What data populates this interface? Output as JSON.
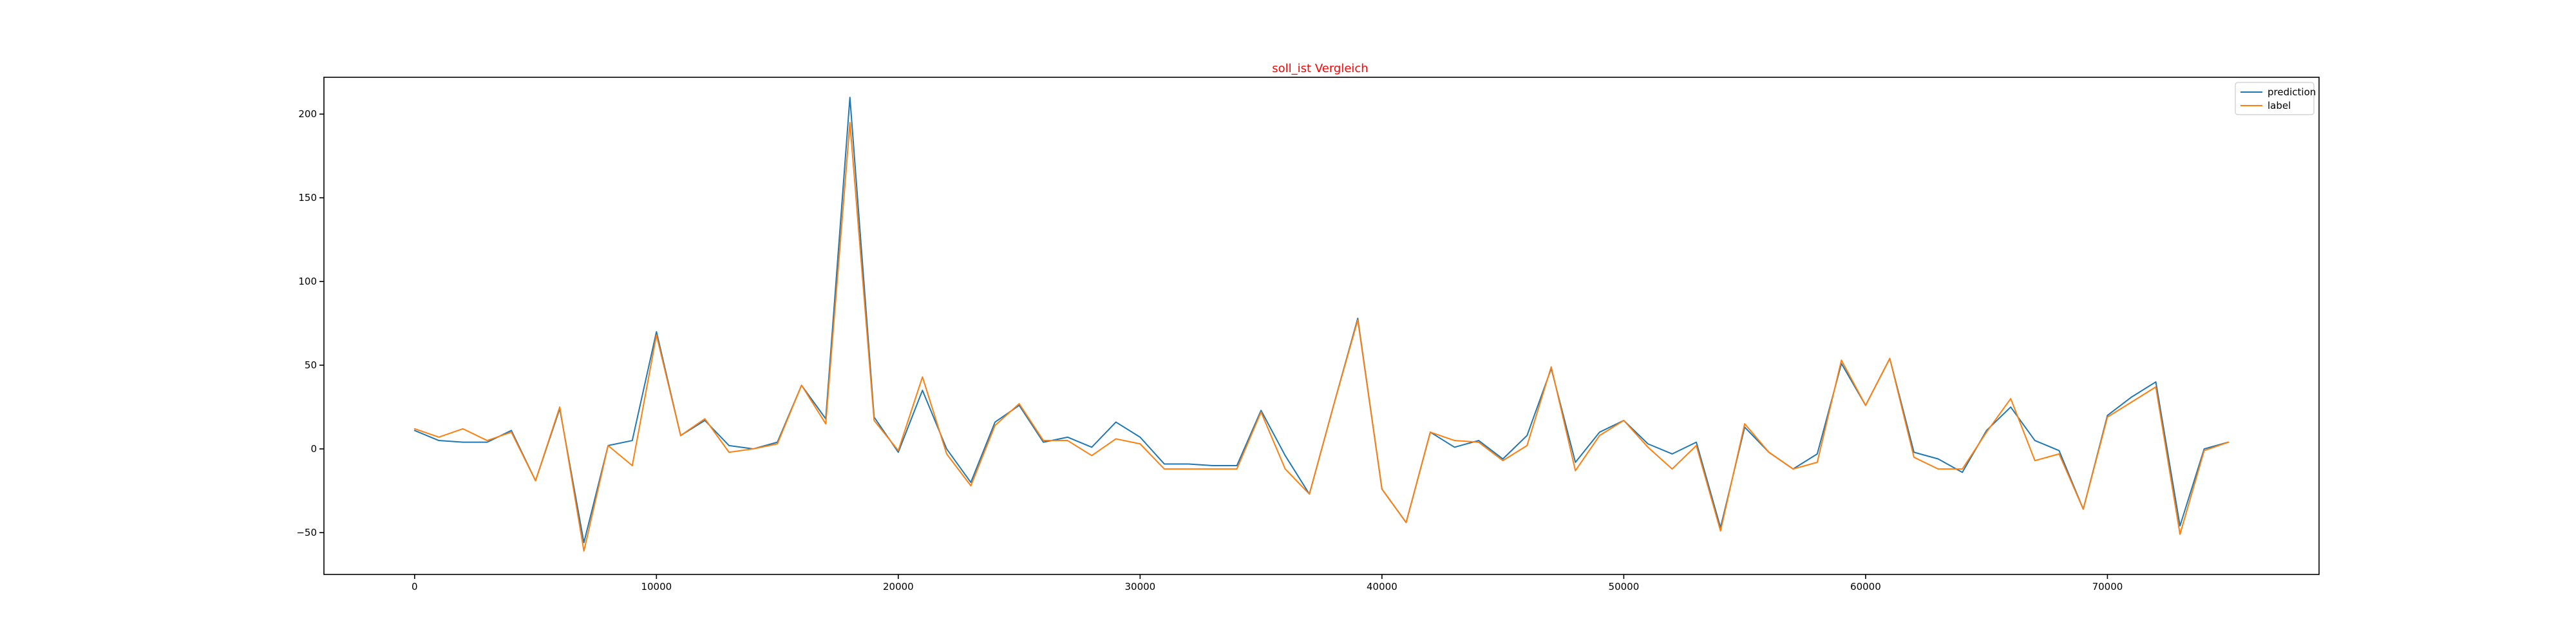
{
  "chart_data": {
    "type": "line",
    "title": "soll_ist Vergleich",
    "title_color": "#ff0000",
    "xlabel": "",
    "ylabel": "",
    "xlim": [
      -3750,
      78750
    ],
    "ylim": [
      -75,
      222
    ],
    "x_ticks": [
      0,
      10000,
      20000,
      30000,
      40000,
      50000,
      60000,
      70000
    ],
    "y_ticks": [
      -50,
      0,
      50,
      100,
      150,
      200
    ],
    "grid": false,
    "legend_position": "top-right",
    "x": [
      0,
      1000,
      2000,
      3000,
      4000,
      5000,
      6000,
      7000,
      8000,
      9000,
      10000,
      11000,
      12000,
      13000,
      14000,
      15000,
      16000,
      17000,
      18000,
      19000,
      20000,
      21000,
      22000,
      23000,
      24000,
      25000,
      26000,
      27000,
      28000,
      29000,
      30000,
      31000,
      32000,
      33000,
      34000,
      35000,
      36000,
      37000,
      38000,
      39000,
      40000,
      41000,
      42000,
      43000,
      44000,
      45000,
      46000,
      47000,
      48000,
      49000,
      50000,
      51000,
      52000,
      53000,
      54000,
      55000,
      56000,
      57000,
      58000,
      59000,
      60000,
      61000,
      62000,
      63000,
      64000,
      65000,
      66000,
      67000,
      68000,
      69000,
      70000,
      71000,
      72000,
      73000,
      74000,
      75000
    ],
    "series": [
      {
        "name": "prediction",
        "color": "#1f77b4",
        "values": [
          11,
          5,
          4,
          4,
          11,
          -19,
          24,
          -56,
          2,
          5,
          70,
          8,
          17,
          2,
          0,
          4,
          38,
          18,
          210,
          19,
          -2,
          35,
          0,
          -20,
          16,
          26,
          4,
          7,
          1,
          16,
          7,
          -9,
          -9,
          -10,
          -10,
          23,
          -4,
          -27,
          26,
          78,
          -24,
          -44,
          10,
          1,
          5,
          -6,
          8,
          48,
          -8,
          10,
          17,
          3,
          -3,
          4,
          -47,
          13,
          -2,
          -12,
          -3,
          51,
          26,
          54,
          -2,
          -6,
          -14,
          11,
          25,
          5,
          -1,
          -36,
          20,
          31,
          40,
          -46,
          0,
          4
        ],
        "linestyle": "solid"
      },
      {
        "name": "label",
        "color": "#ff7f0e",
        "values": [
          12,
          7,
          12,
          5,
          10,
          -19,
          25,
          -61,
          2,
          -10,
          68,
          8,
          18,
          -2,
          0,
          3,
          38,
          15,
          195,
          17,
          -1,
          43,
          -3,
          -22,
          14,
          27,
          5,
          5,
          -4,
          6,
          3,
          -12,
          -12,
          -12,
          -12,
          22,
          -12,
          -27,
          26,
          77,
          -24,
          -44,
          10,
          5,
          4,
          -7,
          2,
          49,
          -13,
          8,
          17,
          1,
          -12,
          2,
          -49,
          15,
          -2,
          -12,
          -8,
          53,
          26,
          54,
          -5,
          -12,
          -12,
          10,
          30,
          -7,
          -3,
          -36,
          19,
          28,
          37,
          -51,
          -1,
          4
        ],
        "linestyle": "solid"
      }
    ]
  }
}
